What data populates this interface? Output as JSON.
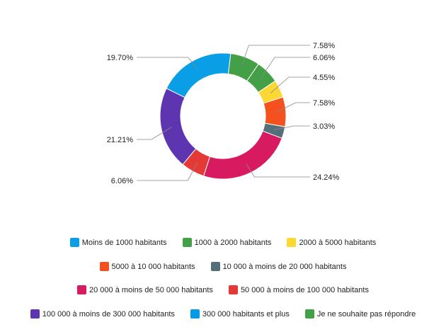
{
  "chart_data": {
    "type": "pie",
    "donut": true,
    "categories": [
      "Moins de 1000 habitants",
      "1000 à 2000 habitants",
      "2000 à 5000 habitants",
      "5000 à 10 000 habitants",
      "10 000 à moins de 20 000 habitants",
      "20 000 à moins de 50 000 habitants",
      "50 000 à moins de 100 000 habitants",
      "100 000 à moins de 300 000 habitants",
      "300 000 habitants et plus",
      "Je ne souhaite pas répondre"
    ],
    "values": [
      19.7,
      6.06,
      4.55,
      7.58,
      3.03,
      24.24,
      6.06,
      21.21,
      0,
      7.58
    ],
    "value_labels": [
      "19.70%",
      "6.06%",
      "4.55%",
      "7.58%",
      "3.03%",
      "24.24%",
      "6.06%",
      "21.21%",
      "",
      "7.58%"
    ],
    "colors": [
      "#0a9ee6",
      "#43a047",
      "#fdd835",
      "#f4511e",
      "#546e7a",
      "#d81b60",
      "#e53935",
      "#5e35b1",
      "#039be5",
      "#43a047"
    ],
    "legend_position": "bottom",
    "legend_rows": [
      [
        0,
        1,
        2
      ],
      [
        3,
        4
      ],
      [
        5,
        6
      ],
      [
        7,
        8,
        9
      ]
    ]
  }
}
